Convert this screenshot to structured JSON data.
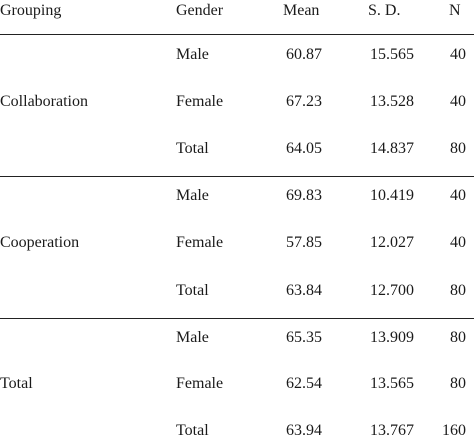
{
  "headers": {
    "grouping": "Grouping",
    "gender": "Gender",
    "mean": "Mean",
    "sd": "S. D.",
    "n": "N"
  },
  "groups": [
    {
      "name": "Collaboration",
      "rows": [
        {
          "gender": "Male",
          "mean": "60.87",
          "sd": "15.565",
          "n": "40"
        },
        {
          "gender": "Female",
          "mean": "67.23",
          "sd": "13.528",
          "n": "40"
        },
        {
          "gender": "Total",
          "mean": "64.05",
          "sd": "14.837",
          "n": "80"
        }
      ]
    },
    {
      "name": "Cooperation",
      "rows": [
        {
          "gender": "Male",
          "mean": "69.83",
          "sd": "10.419",
          "n": "40"
        },
        {
          "gender": "Female",
          "mean": "57.85",
          "sd": "12.027",
          "n": "40"
        },
        {
          "gender": "Total",
          "mean": "63.84",
          "sd": "12.700",
          "n": "80"
        }
      ]
    },
    {
      "name": "Total",
      "rows": [
        {
          "gender": "Male",
          "mean": "65.35",
          "sd": "13.909",
          "n": "80"
        },
        {
          "gender": "Female",
          "mean": "62.54",
          "sd": "13.565",
          "n": "80"
        },
        {
          "gender": "Total",
          "mean": "63.94",
          "sd": "13.767",
          "n": "160"
        }
      ]
    }
  ]
}
